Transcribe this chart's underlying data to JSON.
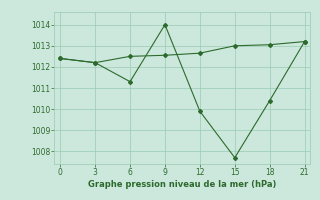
{
  "line1_x": [
    0,
    3,
    6,
    9,
    12,
    15,
    18,
    21
  ],
  "line1_y": [
    1012.4,
    1012.2,
    1012.5,
    1012.55,
    1012.65,
    1013.0,
    1013.05,
    1013.2
  ],
  "line2_x": [
    0,
    3,
    6,
    9,
    12,
    15,
    18,
    21
  ],
  "line2_y": [
    1012.4,
    1012.2,
    1011.3,
    1014.0,
    1009.9,
    1007.7,
    1010.4,
    1013.2
  ],
  "line_color": "#2d6a2d",
  "background_color": "#cce8dc",
  "grid_color": "#99ccb3",
  "xlabel": "Graphe pression niveau de la mer (hPa)",
  "xlabel_color": "#2d6a2d",
  "xticks": [
    0,
    3,
    6,
    9,
    12,
    15,
    18,
    21
  ],
  "yticks": [
    1008,
    1009,
    1010,
    1011,
    1012,
    1013,
    1014
  ],
  "ylim": [
    1007.4,
    1014.6
  ],
  "xlim": [
    -0.5,
    21.5
  ]
}
